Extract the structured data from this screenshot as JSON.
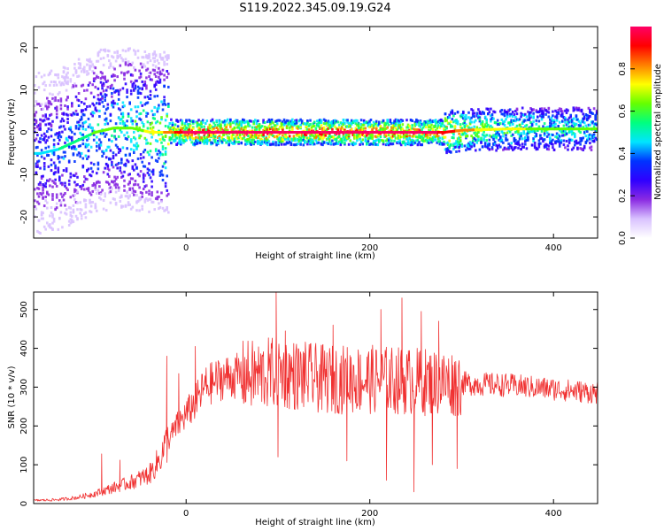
{
  "title": "S119.2022.345.09.19.G24",
  "chart_data": [
    {
      "type": "heatmap",
      "xlabel": "Height of straight line (km)",
      "ylabel": "Frequency (Hz)",
      "xlim": [
        -166,
        448
      ],
      "ylim": [
        -25,
        25
      ],
      "x_ticks": [
        0,
        200,
        400
      ],
      "y_ticks": [
        -20,
        -10,
        0,
        10,
        20
      ],
      "grid": false,
      "colorbar": {
        "label": "Normalized spectral amplitude",
        "range": [
          0,
          1
        ],
        "ticks": [
          "0.0",
          "0.2",
          "0.4",
          "0.6",
          "0.8"
        ],
        "colormap": [
          "#ffffff",
          "#d9c2ff",
          "#8a2be2",
          "#2f00ff",
          "#0033ff",
          "#00e5ff",
          "#00ff7f",
          "#66ff00",
          "#ffff00",
          "#ff7f00",
          "#ff0000",
          "#ff0066"
        ]
      },
      "ridge": {
        "description_points_x": [
          -160,
          -140,
          -120,
          -100,
          -80,
          -60,
          -40,
          -20,
          0,
          100,
          200,
          280,
          300,
          350,
          400,
          448
        ],
        "center_freq_hz": [
          -5,
          -4,
          -2,
          0,
          1,
          1,
          0,
          0,
          0,
          0,
          0,
          0,
          0.5,
          0.8,
          0.8,
          0.8
        ],
        "peak_amplitude": [
          0.35,
          0.4,
          0.45,
          0.5,
          0.5,
          0.55,
          0.6,
          0.7,
          0.9,
          0.9,
          0.9,
          0.85,
          0.7,
          0.6,
          0.55,
          0.5
        ]
      }
    },
    {
      "type": "line",
      "xlabel": "Height of straight line (km)",
      "ylabel": "SNR (10 * v/v)",
      "xlim": [
        -166,
        448
      ],
      "ylim": [
        0,
        545
      ],
      "x_ticks": [
        0,
        200,
        400
      ],
      "y_ticks": [
        0,
        100,
        200,
        300,
        400,
        500
      ],
      "grid": false,
      "series": [
        {
          "color": "#f03030",
          "envelope_x": [
            -166,
            -140,
            -120,
            -100,
            -80,
            -60,
            -40,
            -30,
            -20,
            -10,
            0,
            10,
            20,
            40,
            60,
            80,
            100,
            120,
            150,
            200,
            250,
            300,
            350,
            400,
            448
          ],
          "envelope_y": [
            8,
            10,
            15,
            25,
            40,
            55,
            75,
            110,
            160,
            200,
            230,
            260,
            300,
            325,
            330,
            330,
            340,
            330,
            320,
            320,
            315,
            310,
            305,
            295,
            285
          ],
          "spikes": [
            {
              "x": -92,
              "y": 128
            },
            {
              "x": -72,
              "y": 112
            },
            {
              "x": -21,
              "y": 380
            },
            {
              "x": -8,
              "y": 335
            },
            {
              "x": 10,
              "y": 405
            },
            {
              "x": 98,
              "y": 545
            },
            {
              "x": 100,
              "y": 120
            },
            {
              "x": 108,
              "y": 445
            },
            {
              "x": 160,
              "y": 460
            },
            {
              "x": 175,
              "y": 110
            },
            {
              "x": 212,
              "y": 500
            },
            {
              "x": 218,
              "y": 60
            },
            {
              "x": 235,
              "y": 530
            },
            {
              "x": 248,
              "y": 30
            },
            {
              "x": 256,
              "y": 495
            },
            {
              "x": 268,
              "y": 100
            },
            {
              "x": 275,
              "y": 470
            },
            {
              "x": 295,
              "y": 90
            }
          ]
        }
      ]
    }
  ]
}
